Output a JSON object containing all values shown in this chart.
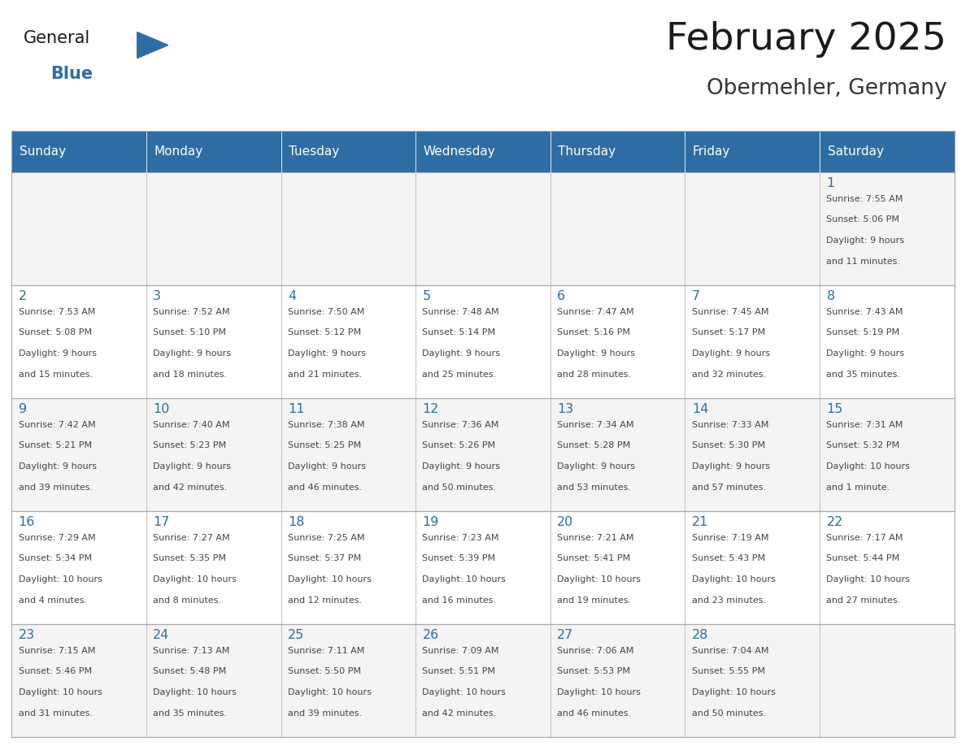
{
  "title": "February 2025",
  "subtitle": "Obermehler, Germany",
  "days_of_week": [
    "Sunday",
    "Monday",
    "Tuesday",
    "Wednesday",
    "Thursday",
    "Friday",
    "Saturday"
  ],
  "header_bg": "#2E6DA4",
  "header_text": "#FFFFFF",
  "border_color": "#AAAAAA",
  "day_number_color": "#2E6DA4",
  "info_text_color": "#444444",
  "title_color": "#1A1A1A",
  "subtitle_color": "#333333",
  "logo_general_color": "#1A1A1A",
  "logo_blue_color": "#2E6DA4",
  "weeks": [
    [
      null,
      null,
      null,
      null,
      null,
      null,
      {
        "day": 1,
        "sunrise": "7:55 AM",
        "sunset": "5:06 PM",
        "daylight": "9 hours and 11 minutes."
      }
    ],
    [
      {
        "day": 2,
        "sunrise": "7:53 AM",
        "sunset": "5:08 PM",
        "daylight": "9 hours and 15 minutes."
      },
      {
        "day": 3,
        "sunrise": "7:52 AM",
        "sunset": "5:10 PM",
        "daylight": "9 hours and 18 minutes."
      },
      {
        "day": 4,
        "sunrise": "7:50 AM",
        "sunset": "5:12 PM",
        "daylight": "9 hours and 21 minutes."
      },
      {
        "day": 5,
        "sunrise": "7:48 AM",
        "sunset": "5:14 PM",
        "daylight": "9 hours and 25 minutes."
      },
      {
        "day": 6,
        "sunrise": "7:47 AM",
        "sunset": "5:16 PM",
        "daylight": "9 hours and 28 minutes."
      },
      {
        "day": 7,
        "sunrise": "7:45 AM",
        "sunset": "5:17 PM",
        "daylight": "9 hours and 32 minutes."
      },
      {
        "day": 8,
        "sunrise": "7:43 AM",
        "sunset": "5:19 PM",
        "daylight": "9 hours and 35 minutes."
      }
    ],
    [
      {
        "day": 9,
        "sunrise": "7:42 AM",
        "sunset": "5:21 PM",
        "daylight": "9 hours and 39 minutes."
      },
      {
        "day": 10,
        "sunrise": "7:40 AM",
        "sunset": "5:23 PM",
        "daylight": "9 hours and 42 minutes."
      },
      {
        "day": 11,
        "sunrise": "7:38 AM",
        "sunset": "5:25 PM",
        "daylight": "9 hours and 46 minutes."
      },
      {
        "day": 12,
        "sunrise": "7:36 AM",
        "sunset": "5:26 PM",
        "daylight": "9 hours and 50 minutes."
      },
      {
        "day": 13,
        "sunrise": "7:34 AM",
        "sunset": "5:28 PM",
        "daylight": "9 hours and 53 minutes."
      },
      {
        "day": 14,
        "sunrise": "7:33 AM",
        "sunset": "5:30 PM",
        "daylight": "9 hours and 57 minutes."
      },
      {
        "day": 15,
        "sunrise": "7:31 AM",
        "sunset": "5:32 PM",
        "daylight": "10 hours and 1 minute."
      }
    ],
    [
      {
        "day": 16,
        "sunrise": "7:29 AM",
        "sunset": "5:34 PM",
        "daylight": "10 hours and 4 minutes."
      },
      {
        "day": 17,
        "sunrise": "7:27 AM",
        "sunset": "5:35 PM",
        "daylight": "10 hours and 8 minutes."
      },
      {
        "day": 18,
        "sunrise": "7:25 AM",
        "sunset": "5:37 PM",
        "daylight": "10 hours and 12 minutes."
      },
      {
        "day": 19,
        "sunrise": "7:23 AM",
        "sunset": "5:39 PM",
        "daylight": "10 hours and 16 minutes."
      },
      {
        "day": 20,
        "sunrise": "7:21 AM",
        "sunset": "5:41 PM",
        "daylight": "10 hours and 19 minutes."
      },
      {
        "day": 21,
        "sunrise": "7:19 AM",
        "sunset": "5:43 PM",
        "daylight": "10 hours and 23 minutes."
      },
      {
        "day": 22,
        "sunrise": "7:17 AM",
        "sunset": "5:44 PM",
        "daylight": "10 hours and 27 minutes."
      }
    ],
    [
      {
        "day": 23,
        "sunrise": "7:15 AM",
        "sunset": "5:46 PM",
        "daylight": "10 hours and 31 minutes."
      },
      {
        "day": 24,
        "sunrise": "7:13 AM",
        "sunset": "5:48 PM",
        "daylight": "10 hours and 35 minutes."
      },
      {
        "day": 25,
        "sunrise": "7:11 AM",
        "sunset": "5:50 PM",
        "daylight": "10 hours and 39 minutes."
      },
      {
        "day": 26,
        "sunrise": "7:09 AM",
        "sunset": "5:51 PM",
        "daylight": "10 hours and 42 minutes."
      },
      {
        "day": 27,
        "sunrise": "7:06 AM",
        "sunset": "5:53 PM",
        "daylight": "10 hours and 46 minutes."
      },
      {
        "day": 28,
        "sunrise": "7:04 AM",
        "sunset": "5:55 PM",
        "daylight": "10 hours and 50 minutes."
      },
      null
    ]
  ]
}
